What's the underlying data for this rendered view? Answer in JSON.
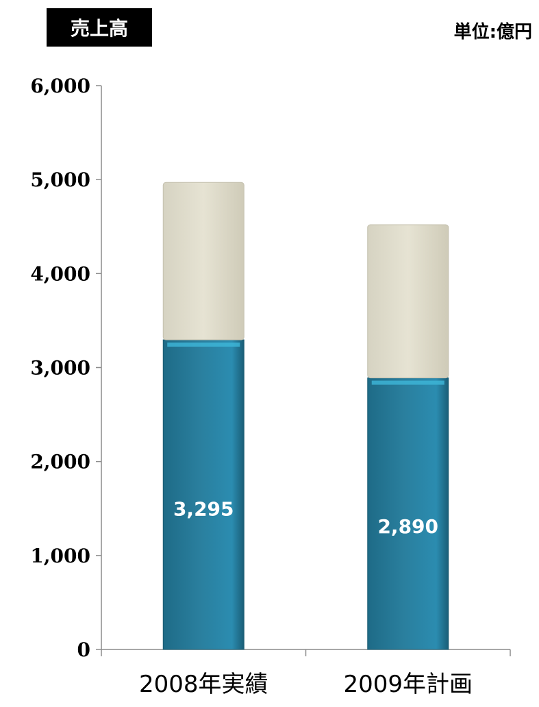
{
  "header": {
    "title": "売上高",
    "unit": "単位:億円"
  },
  "colors": {
    "segment_bottom": "#2a7f9e",
    "segment_top": "#e6e3d3",
    "axis": "#8c8c8c",
    "title_bg": "#000000",
    "value_label": "#ffffff"
  },
  "chart_data": {
    "type": "bar",
    "stacked": true,
    "title": "売上高",
    "unit": "単位:億円",
    "categories": [
      "2008年実績",
      "2009年計画"
    ],
    "series": [
      {
        "values": [
          3295,
          2890
        ],
        "color": "#2a7f9e",
        "data_labels": [
          "3,295",
          "2,890"
        ]
      },
      {
        "values": [
          1675,
          1630
        ],
        "color": "#e6e3d3"
      }
    ],
    "ylim": [
      0,
      6000
    ],
    "yticks": [
      0,
      1000,
      2000,
      3000,
      4000,
      5000,
      6000
    ],
    "ytick_labels": [
      "0",
      "1,000",
      "2,000",
      "3,000",
      "4,000",
      "5,000",
      "6,000"
    ],
    "grid": false,
    "legend": "none"
  }
}
